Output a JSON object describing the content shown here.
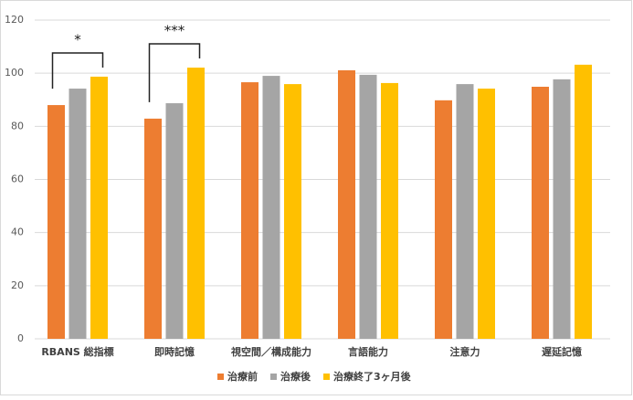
{
  "chart_data": {
    "type": "bar",
    "categories": [
      "RBANS 総指標",
      "即時記憶",
      "視空間／構成能力",
      "言語能力",
      "注意力",
      "遅延記憶"
    ],
    "series": [
      {
        "name": "治療前",
        "color": "#ed7d31",
        "values": [
          88.0,
          82.9,
          96.6,
          101.1,
          89.8,
          94.9
        ]
      },
      {
        "name": "治療後",
        "color": "#a5a5a5",
        "values": [
          94.2,
          88.7,
          99.0,
          99.4,
          95.9,
          97.7
        ]
      },
      {
        "name": "治療終了3ヶ月後",
        "color": "#ffc000",
        "values": [
          98.7,
          102.1,
          95.9,
          96.3,
          94.2,
          103.2
        ]
      }
    ],
    "ylim": [
      0,
      120
    ],
    "yticks": [
      0,
      20,
      40,
      60,
      80,
      100,
      120
    ],
    "grid": true,
    "annotations": [
      "*",
      "***"
    ]
  }
}
